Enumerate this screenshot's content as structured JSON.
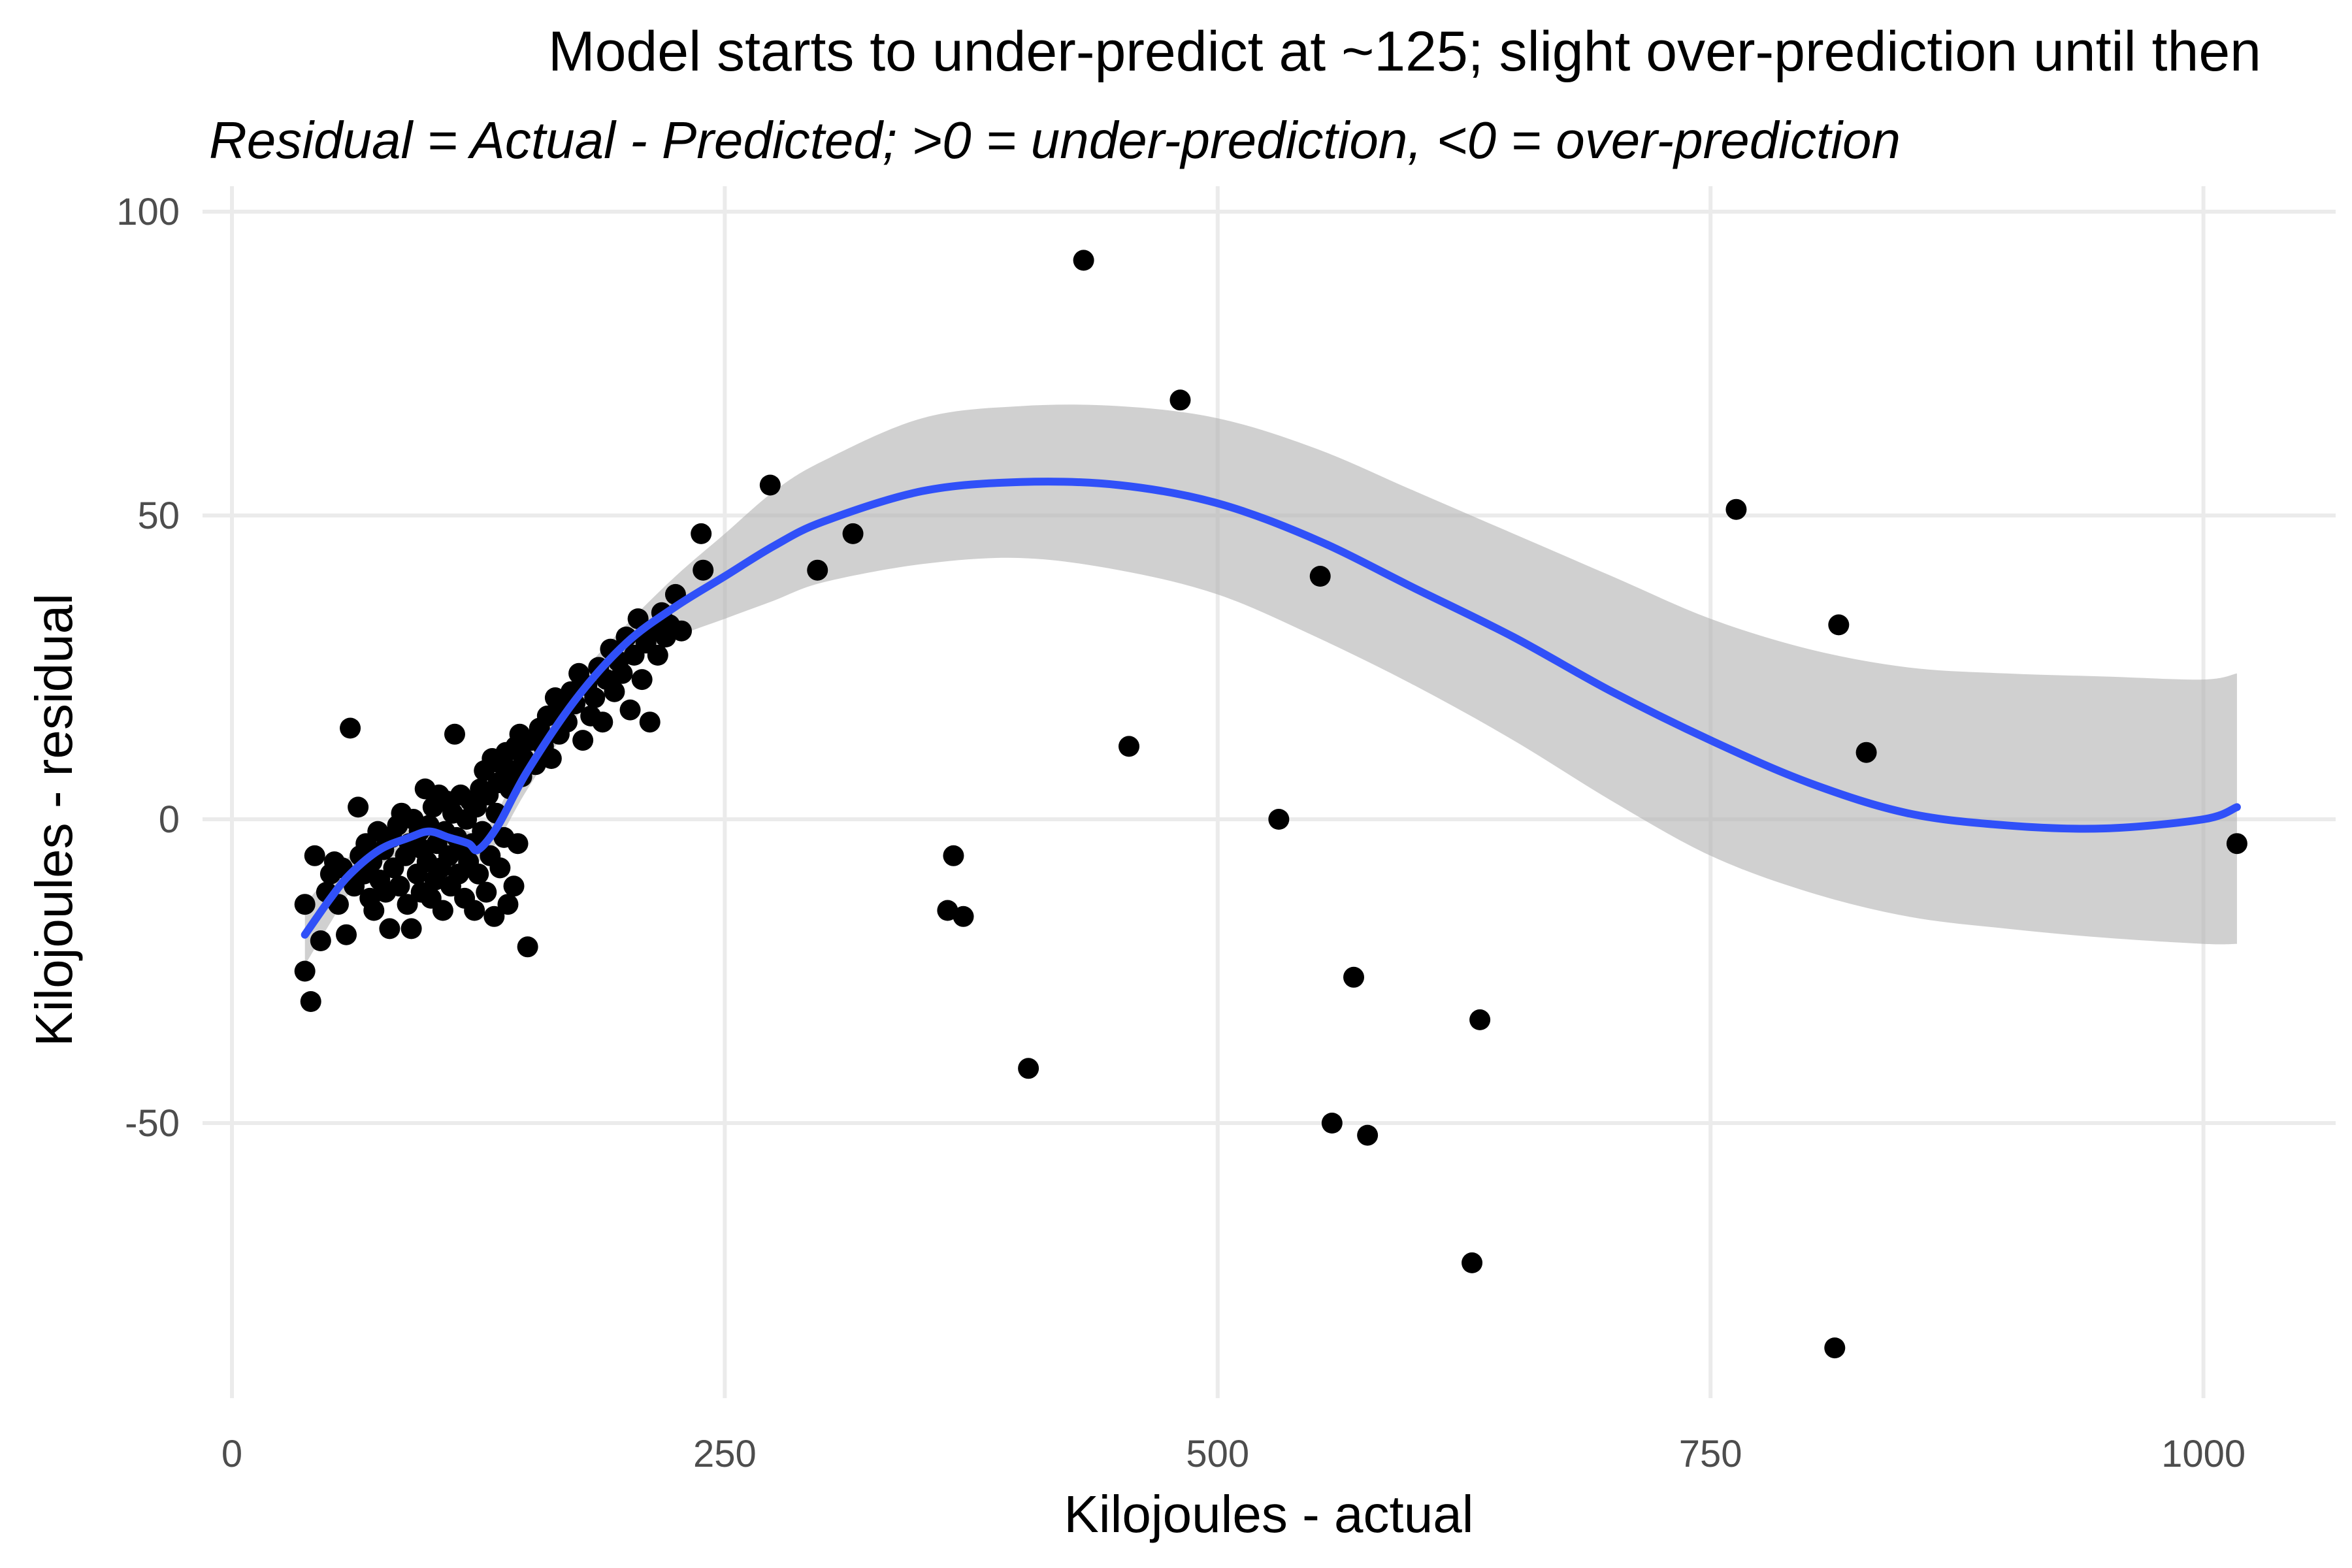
{
  "chart_data": {
    "type": "scatter",
    "title": "Model starts to under-predict at ~125; slight over-prediction until then",
    "subtitle": "Residual = Actual - Predicted; >0 = under-prediction, <0 = over-prediction",
    "xlabel": "Kilojoules - actual",
    "ylabel": "Kilojoules - residual",
    "xlim": [
      0,
      1020
    ],
    "ylim": [
      -95,
      100
    ],
    "x_ticks": [
      0,
      250,
      500,
      750,
      1000
    ],
    "x_tick_labels": [
      "0",
      "250",
      "500",
      "750",
      "1000"
    ],
    "y_ticks": [
      -50,
      0,
      50,
      100
    ],
    "y_tick_labels": [
      "-50",
      "0",
      "50",
      "100"
    ],
    "grid": true,
    "colors": {
      "points": "#000000",
      "smooth_line": "#3050f8",
      "confidence_band": "#b3b3b3",
      "grid": "#ebebeb"
    },
    "points": [
      {
        "x": 37,
        "y": -14
      },
      {
        "x": 37,
        "y": -25
      },
      {
        "x": 40,
        "y": -30
      },
      {
        "x": 42,
        "y": -6
      },
      {
        "x": 45,
        "y": -20
      },
      {
        "x": 48,
        "y": -12
      },
      {
        "x": 50,
        "y": -9
      },
      {
        "x": 52,
        "y": -7
      },
      {
        "x": 54,
        "y": -14
      },
      {
        "x": 56,
        "y": -8
      },
      {
        "x": 58,
        "y": -19
      },
      {
        "x": 60,
        "y": 15
      },
      {
        "x": 62,
        "y": -11
      },
      {
        "x": 64,
        "y": 2
      },
      {
        "x": 65,
        "y": -6
      },
      {
        "x": 67,
        "y": -9
      },
      {
        "x": 68,
        "y": -4
      },
      {
        "x": 70,
        "y": -13
      },
      {
        "x": 71,
        "y": -7
      },
      {
        "x": 72,
        "y": -15
      },
      {
        "x": 74,
        "y": -2
      },
      {
        "x": 75,
        "y": -10
      },
      {
        "x": 77,
        "y": -5
      },
      {
        "x": 78,
        "y": -12
      },
      {
        "x": 80,
        "y": -18
      },
      {
        "x": 81,
        "y": -3
      },
      {
        "x": 82,
        "y": -8
      },
      {
        "x": 84,
        "y": -1
      },
      {
        "x": 85,
        "y": -11
      },
      {
        "x": 86,
        "y": 1
      },
      {
        "x": 88,
        "y": -6
      },
      {
        "x": 89,
        "y": -14
      },
      {
        "x": 90,
        "y": -4
      },
      {
        "x": 91,
        "y": -18
      },
      {
        "x": 92,
        "y": 0
      },
      {
        "x": 94,
        "y": -9
      },
      {
        "x": 95,
        "y": -2
      },
      {
        "x": 96,
        "y": -12
      },
      {
        "x": 97,
        "y": -5
      },
      {
        "x": 98,
        "y": 5
      },
      {
        "x": 99,
        "y": -7
      },
      {
        "x": 100,
        "y": -1
      },
      {
        "x": 101,
        "y": -13
      },
      {
        "x": 102,
        "y": 2
      },
      {
        "x": 103,
        "y": -10
      },
      {
        "x": 104,
        "y": -4
      },
      {
        "x": 105,
        "y": 4
      },
      {
        "x": 106,
        "y": -8
      },
      {
        "x": 107,
        "y": -15
      },
      {
        "x": 108,
        "y": -2
      },
      {
        "x": 109,
        "y": 3
      },
      {
        "x": 110,
        "y": -6
      },
      {
        "x": 111,
        "y": -11
      },
      {
        "x": 112,
        "y": 1
      },
      {
        "x": 113,
        "y": 14
      },
      {
        "x": 114,
        "y": -3
      },
      {
        "x": 115,
        "y": -9
      },
      {
        "x": 116,
        "y": 4
      },
      {
        "x": 117,
        "y": -5
      },
      {
        "x": 118,
        "y": -13
      },
      {
        "x": 119,
        "y": 0
      },
      {
        "x": 120,
        "y": -7
      },
      {
        "x": 121,
        "y": 3
      },
      {
        "x": 122,
        "y": -4
      },
      {
        "x": 123,
        "y": -15
      },
      {
        "x": 124,
        "y": 2
      },
      {
        "x": 125,
        "y": -9
      },
      {
        "x": 126,
        "y": 5
      },
      {
        "x": 127,
        "y": -2
      },
      {
        "x": 128,
        "y": 8
      },
      {
        "x": 129,
        "y": -12
      },
      {
        "x": 130,
        "y": 4
      },
      {
        "x": 131,
        "y": -6
      },
      {
        "x": 132,
        "y": 10
      },
      {
        "x": 133,
        "y": -16
      },
      {
        "x": 134,
        "y": 1
      },
      {
        "x": 135,
        "y": 6
      },
      {
        "x": 136,
        "y": -8
      },
      {
        "x": 137,
        "y": 9
      },
      {
        "x": 138,
        "y": -3
      },
      {
        "x": 139,
        "y": 11
      },
      {
        "x": 140,
        "y": -14
      },
      {
        "x": 141,
        "y": 5
      },
      {
        "x": 142,
        "y": 8
      },
      {
        "x": 143,
        "y": -11
      },
      {
        "x": 144,
        "y": 12
      },
      {
        "x": 145,
        "y": -4
      },
      {
        "x": 146,
        "y": 14
      },
      {
        "x": 147,
        "y": 7
      },
      {
        "x": 148,
        "y": 10
      },
      {
        "x": 150,
        "y": -21
      },
      {
        "x": 152,
        "y": 13
      },
      {
        "x": 154,
        "y": 9
      },
      {
        "x": 156,
        "y": 15
      },
      {
        "x": 158,
        "y": 12
      },
      {
        "x": 160,
        "y": 17
      },
      {
        "x": 162,
        "y": 10
      },
      {
        "x": 164,
        "y": 20
      },
      {
        "x": 166,
        "y": 14
      },
      {
        "x": 168,
        "y": 18
      },
      {
        "x": 170,
        "y": 16
      },
      {
        "x": 172,
        "y": 21
      },
      {
        "x": 174,
        "y": 19
      },
      {
        "x": 176,
        "y": 24
      },
      {
        "x": 178,
        "y": 13
      },
      {
        "x": 180,
        "y": 22
      },
      {
        "x": 182,
        "y": 17
      },
      {
        "x": 184,
        "y": 20
      },
      {
        "x": 186,
        "y": 25
      },
      {
        "x": 188,
        "y": 16
      },
      {
        "x": 190,
        "y": 23
      },
      {
        "x": 192,
        "y": 28
      },
      {
        "x": 194,
        "y": 21
      },
      {
        "x": 196,
        "y": 26
      },
      {
        "x": 198,
        "y": 24
      },
      {
        "x": 200,
        "y": 30
      },
      {
        "x": 202,
        "y": 18
      },
      {
        "x": 204,
        "y": 27
      },
      {
        "x": 206,
        "y": 33
      },
      {
        "x": 208,
        "y": 23
      },
      {
        "x": 210,
        "y": 29
      },
      {
        "x": 212,
        "y": 16
      },
      {
        "x": 214,
        "y": 31
      },
      {
        "x": 216,
        "y": 27
      },
      {
        "x": 218,
        "y": 34
      },
      {
        "x": 220,
        "y": 30
      },
      {
        "x": 222,
        "y": 32
      },
      {
        "x": 225,
        "y": 37
      },
      {
        "x": 228,
        "y": 31
      },
      {
        "x": 238,
        "y": 47
      },
      {
        "x": 239,
        "y": 41
      },
      {
        "x": 273,
        "y": 55
      },
      {
        "x": 297,
        "y": 41
      },
      {
        "x": 315,
        "y": 47
      },
      {
        "x": 363,
        "y": -15
      },
      {
        "x": 366,
        "y": -6
      },
      {
        "x": 371,
        "y": -16
      },
      {
        "x": 404,
        "y": -41
      },
      {
        "x": 432,
        "y": 92
      },
      {
        "x": 455,
        "y": 12
      },
      {
        "x": 481,
        "y": 69
      },
      {
        "x": 531,
        "y": 0
      },
      {
        "x": 552,
        "y": 40
      },
      {
        "x": 558,
        "y": -50
      },
      {
        "x": 569,
        "y": -26
      },
      {
        "x": 576,
        "y": -52
      },
      {
        "x": 629,
        "y": -73
      },
      {
        "x": 633,
        "y": -33
      },
      {
        "x": 763,
        "y": 51
      },
      {
        "x": 813,
        "y": -87
      },
      {
        "x": 815,
        "y": 32
      },
      {
        "x": 829,
        "y": 11
      },
      {
        "x": 1017,
        "y": -4
      }
    ],
    "smooth": {
      "method": "loess",
      "x": [
        37,
        50,
        60,
        75,
        90,
        100,
        110,
        120,
        125,
        135,
        150,
        175,
        200,
        225,
        250,
        275,
        300,
        350,
        400,
        450,
        500,
        550,
        600,
        650,
        700,
        750,
        800,
        850,
        900,
        950,
        1000,
        1017
      ],
      "y": [
        -19,
        -13,
        -9,
        -5,
        -3,
        -2,
        -3,
        -4,
        -5,
        -1,
        8,
        20,
        29,
        35,
        40,
        45,
        49,
        54,
        55.5,
        55,
        52,
        46,
        38,
        30,
        21,
        13,
        6,
        1,
        -1,
        -1.5,
        0,
        2
      ],
      "lower": [
        -24,
        -17,
        -12,
        -7.5,
        -5,
        -4,
        -5,
        -6,
        -7,
        -3.5,
        5,
        17,
        26,
        30,
        33,
        36,
        39,
        42,
        43,
        41,
        37,
        30,
        22,
        13,
        3,
        -6,
        -12,
        -16,
        -18,
        -19.5,
        -20.5,
        -20.5
      ],
      "upper": [
        -14,
        -9,
        -6,
        -2.5,
        -1,
        0,
        -1,
        -2,
        -3,
        1.5,
        11,
        23,
        32,
        40,
        47,
        54,
        59,
        66,
        68,
        68,
        66,
        61,
        54,
        47,
        40,
        33,
        28,
        25,
        24,
        23.5,
        23,
        24
      ]
    }
  }
}
